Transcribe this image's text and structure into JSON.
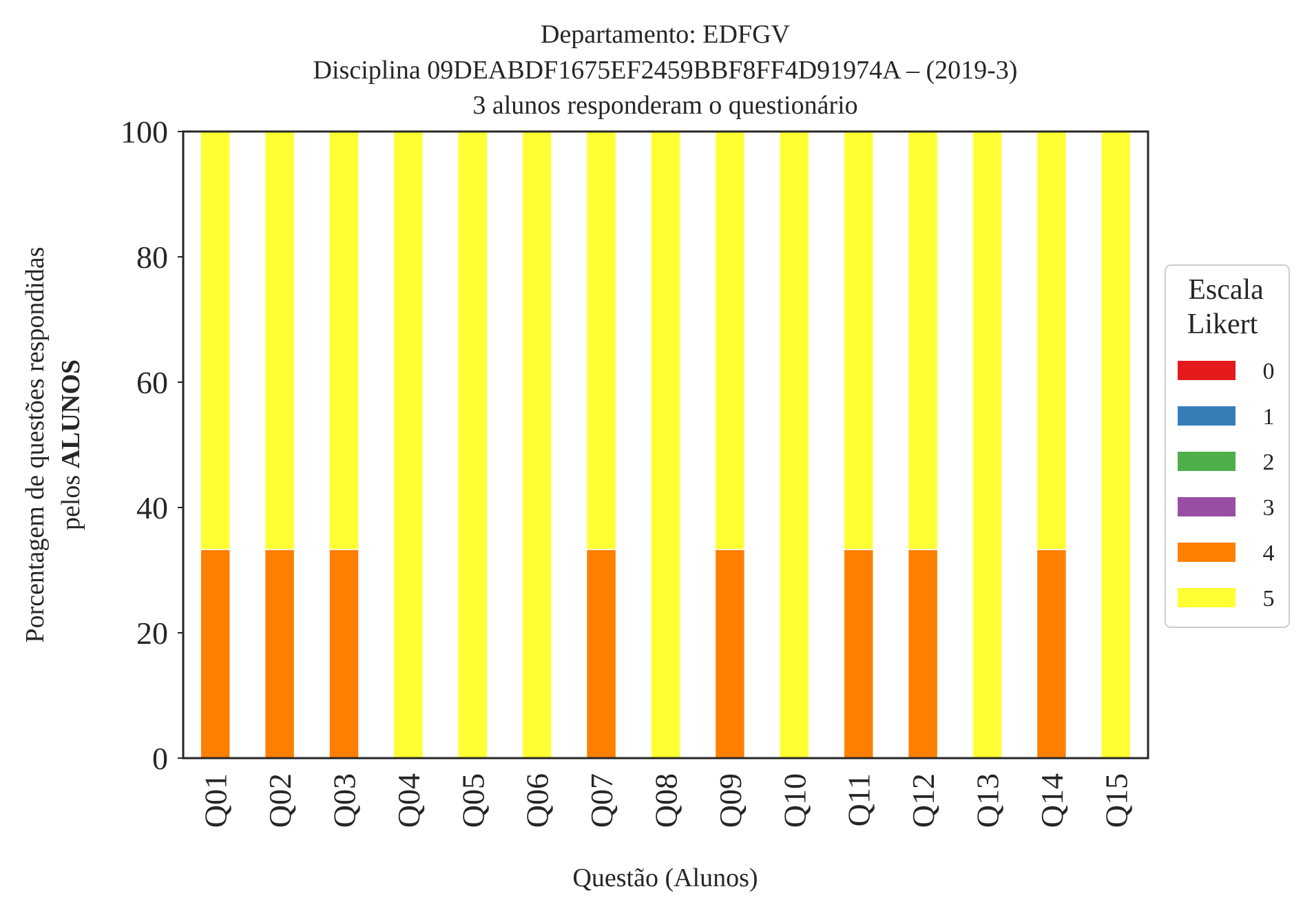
{
  "title_lines": [
    "Departamento: EDFGV",
    "Disciplina 09DEABDF1675EF2459BBF8FF4D91974A – (2019-3)",
    "3 alunos responderam o questionário"
  ],
  "chart_data": {
    "type": "bar",
    "stacked": true,
    "categories": [
      "Q01",
      "Q02",
      "Q03",
      "Q04",
      "Q05",
      "Q06",
      "Q07",
      "Q08",
      "Q09",
      "Q10",
      "Q11",
      "Q12",
      "Q13",
      "Q14",
      "Q15"
    ],
    "series": [
      {
        "name": "0",
        "color": "#e41a1c",
        "values": [
          0,
          0,
          0,
          0,
          0,
          0,
          0,
          0,
          0,
          0,
          0,
          0,
          0,
          0,
          0
        ]
      },
      {
        "name": "1",
        "color": "#377eb8",
        "values": [
          0,
          0,
          0,
          0,
          0,
          0,
          0,
          0,
          0,
          0,
          0,
          0,
          0,
          0,
          0
        ]
      },
      {
        "name": "2",
        "color": "#4daf4a",
        "values": [
          0,
          0,
          0,
          0,
          0,
          0,
          0,
          0,
          0,
          0,
          0,
          0,
          0,
          0,
          0
        ]
      },
      {
        "name": "3",
        "color": "#984ea3",
        "values": [
          0,
          0,
          0,
          0,
          0,
          0,
          0,
          0,
          0,
          0,
          0,
          0,
          0,
          0,
          0
        ]
      },
      {
        "name": "4",
        "color": "#ff7f00",
        "values": [
          33.3,
          33.3,
          33.3,
          0,
          0,
          0,
          33.3,
          0,
          33.3,
          0,
          33.3,
          33.3,
          0,
          33.3,
          0
        ]
      },
      {
        "name": "5",
        "color": "#ffff33",
        "values": [
          66.7,
          66.7,
          66.7,
          100,
          100,
          100,
          66.7,
          100,
          66.7,
          100,
          66.7,
          66.7,
          100,
          66.7,
          100
        ]
      }
    ],
    "xlabel": "Questão (Alunos)",
    "ylabel_line1": "Porcentagem de questões respondidas",
    "ylabel_line2_prefix": "pelos ",
    "ylabel_line2_bold": "ALUNOS",
    "ylim": [
      0,
      100
    ],
    "yticks": [
      0,
      20,
      40,
      60,
      80,
      100
    ],
    "grid": false,
    "legend": {
      "title_lines": [
        "Escala",
        "Likert"
      ],
      "placement": "right, outside plot, vertically centered"
    }
  }
}
